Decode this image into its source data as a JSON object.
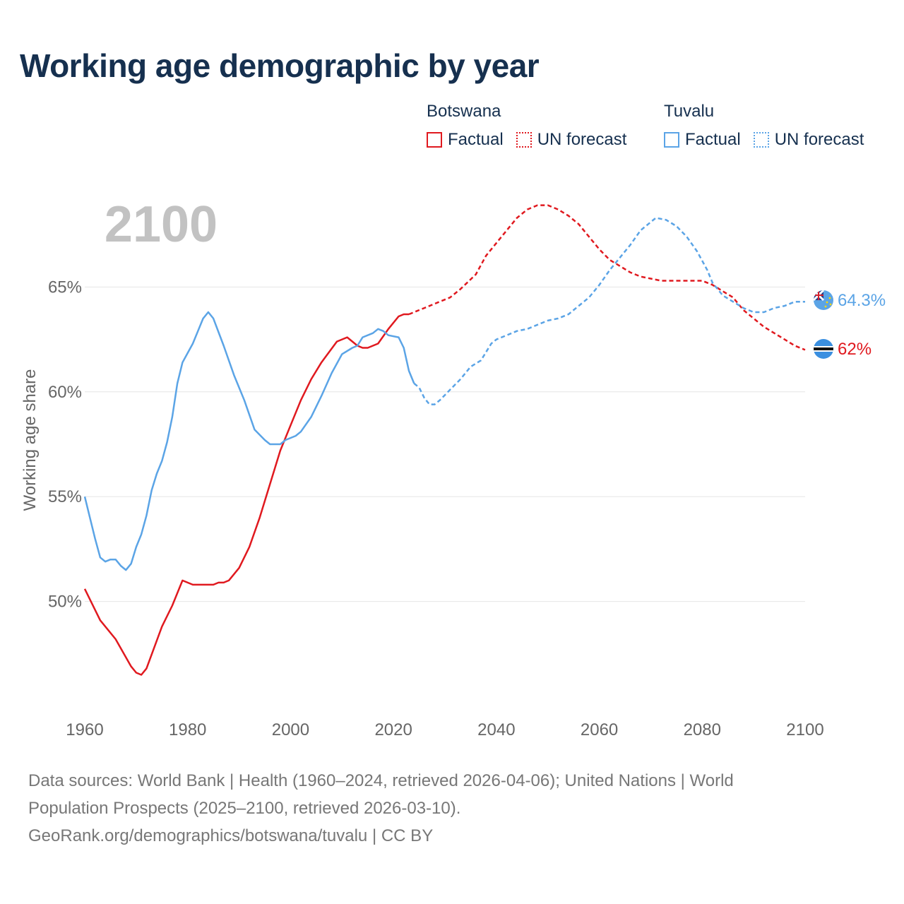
{
  "chart_data": {
    "type": "line",
    "title": "Working age demographic by year",
    "ylabel": "Working age share",
    "xlabel": "",
    "year_label": "2100",
    "xlim": [
      1960,
      2100
    ],
    "ylim": [
      45,
      70
    ],
    "x_ticks": [
      "1960",
      "1980",
      "2000",
      "2020",
      "2040",
      "2060",
      "2080",
      "2100"
    ],
    "x_tick_values": [
      1960,
      1980,
      2000,
      2020,
      2040,
      2060,
      2080,
      2100
    ],
    "y_ticks": [
      "50%",
      "55%",
      "60%",
      "65%"
    ],
    "y_tick_values": [
      50,
      55,
      60,
      65
    ],
    "factual_end_year": 2024,
    "series": [
      {
        "name": "Botswana",
        "color": "#e0191f",
        "end_label": "62%",
        "flag": "botswana-flag",
        "points": [
          [
            1960,
            50.6
          ],
          [
            1963,
            49.1
          ],
          [
            1966,
            48.2
          ],
          [
            1969,
            46.9
          ],
          [
            1970,
            46.6
          ],
          [
            1971,
            46.5
          ],
          [
            1972,
            46.8
          ],
          [
            1975,
            48.8
          ],
          [
            1977,
            49.8
          ],
          [
            1979,
            51.0
          ],
          [
            1981,
            50.8
          ],
          [
            1983,
            50.8
          ],
          [
            1985,
            50.8
          ],
          [
            1986,
            50.9
          ],
          [
            1987,
            50.9
          ],
          [
            1988,
            51.0
          ],
          [
            1990,
            51.6
          ],
          [
            1992,
            52.6
          ],
          [
            1994,
            54.0
          ],
          [
            1996,
            55.6
          ],
          [
            1998,
            57.2
          ],
          [
            2000,
            58.4
          ],
          [
            2002,
            59.6
          ],
          [
            2004,
            60.6
          ],
          [
            2006,
            61.4
          ],
          [
            2009,
            62.4
          ],
          [
            2011,
            62.6
          ],
          [
            2013,
            62.2
          ],
          [
            2014,
            62.1
          ],
          [
            2015,
            62.1
          ],
          [
            2017,
            62.3
          ],
          [
            2019,
            63.0
          ],
          [
            2021,
            63.6
          ],
          [
            2022,
            63.7
          ],
          [
            2023,
            63.7
          ],
          [
            2025,
            63.9
          ],
          [
            2026,
            64.0
          ],
          [
            2028,
            64.2
          ],
          [
            2031,
            64.5
          ],
          [
            2033,
            64.9
          ],
          [
            2036,
            65.6
          ],
          [
            2038,
            66.5
          ],
          [
            2041,
            67.4
          ],
          [
            2044,
            68.3
          ],
          [
            2046,
            68.7
          ],
          [
            2048,
            68.9
          ],
          [
            2050,
            68.9
          ],
          [
            2052,
            68.7
          ],
          [
            2054,
            68.4
          ],
          [
            2056,
            68.0
          ],
          [
            2058,
            67.4
          ],
          [
            2060,
            66.8
          ],
          [
            2062,
            66.3
          ],
          [
            2064,
            66.0
          ],
          [
            2066,
            65.7
          ],
          [
            2068,
            65.5
          ],
          [
            2070,
            65.4
          ],
          [
            2072,
            65.3
          ],
          [
            2074,
            65.3
          ],
          [
            2076,
            65.3
          ],
          [
            2078,
            65.3
          ],
          [
            2080,
            65.3
          ],
          [
            2082,
            65.1
          ],
          [
            2084,
            64.8
          ],
          [
            2086,
            64.5
          ],
          [
            2088,
            63.9
          ],
          [
            2090,
            63.5
          ],
          [
            2092,
            63.1
          ],
          [
            2094,
            62.8
          ],
          [
            2096,
            62.5
          ],
          [
            2098,
            62.2
          ],
          [
            2100,
            62.0
          ]
        ]
      },
      {
        "name": "Tuvalu",
        "color": "#5ba4e6",
        "end_label": "64.3%",
        "flag": "tuvalu-flag",
        "points": [
          [
            1960,
            55.0
          ],
          [
            1962,
            53.0
          ],
          [
            1963,
            52.1
          ],
          [
            1964,
            51.9
          ],
          [
            1965,
            52.0
          ],
          [
            1966,
            52.0
          ],
          [
            1967,
            51.7
          ],
          [
            1968,
            51.5
          ],
          [
            1969,
            51.8
          ],
          [
            1970,
            52.6
          ],
          [
            1971,
            53.2
          ],
          [
            1972,
            54.1
          ],
          [
            1973,
            55.3
          ],
          [
            1974,
            56.1
          ],
          [
            1975,
            56.7
          ],
          [
            1976,
            57.6
          ],
          [
            1977,
            58.8
          ],
          [
            1978,
            60.4
          ],
          [
            1979,
            61.4
          ],
          [
            1981,
            62.3
          ],
          [
            1982,
            62.9
          ],
          [
            1983,
            63.5
          ],
          [
            1984,
            63.8
          ],
          [
            1985,
            63.5
          ],
          [
            1987,
            62.2
          ],
          [
            1989,
            60.8
          ],
          [
            1991,
            59.6
          ],
          [
            1993,
            58.2
          ],
          [
            1995,
            57.7
          ],
          [
            1996,
            57.5
          ],
          [
            1998,
            57.5
          ],
          [
            1999,
            57.7
          ],
          [
            2001,
            57.9
          ],
          [
            2002,
            58.1
          ],
          [
            2004,
            58.8
          ],
          [
            2006,
            59.8
          ],
          [
            2008,
            60.9
          ],
          [
            2010,
            61.8
          ],
          [
            2012,
            62.1
          ],
          [
            2013,
            62.2
          ],
          [
            2014,
            62.6
          ],
          [
            2016,
            62.8
          ],
          [
            2017,
            63.0
          ],
          [
            2018,
            62.9
          ],
          [
            2019,
            62.7
          ],
          [
            2021,
            62.6
          ],
          [
            2022,
            62.1
          ],
          [
            2023,
            61.0
          ],
          [
            2024,
            60.4
          ],
          [
            2025,
            60.2
          ],
          [
            2026,
            59.7
          ],
          [
            2027,
            59.4
          ],
          [
            2028,
            59.4
          ],
          [
            2029,
            59.6
          ],
          [
            2031,
            60.1
          ],
          [
            2033,
            60.6
          ],
          [
            2035,
            61.2
          ],
          [
            2037,
            61.5
          ],
          [
            2039,
            62.3
          ],
          [
            2040,
            62.5
          ],
          [
            2042,
            62.7
          ],
          [
            2044,
            62.9
          ],
          [
            2046,
            63.0
          ],
          [
            2048,
            63.2
          ],
          [
            2050,
            63.4
          ],
          [
            2052,
            63.5
          ],
          [
            2054,
            63.7
          ],
          [
            2056,
            64.1
          ],
          [
            2058,
            64.5
          ],
          [
            2060,
            65.1
          ],
          [
            2062,
            65.8
          ],
          [
            2064,
            66.4
          ],
          [
            2066,
            67.0
          ],
          [
            2068,
            67.7
          ],
          [
            2070,
            68.1
          ],
          [
            2071,
            68.3
          ],
          [
            2073,
            68.2
          ],
          [
            2075,
            67.9
          ],
          [
            2077,
            67.4
          ],
          [
            2079,
            66.7
          ],
          [
            2081,
            65.8
          ],
          [
            2082,
            65.2
          ],
          [
            2084,
            64.6
          ],
          [
            2086,
            64.3
          ],
          [
            2088,
            64.0
          ],
          [
            2090,
            63.8
          ],
          [
            2092,
            63.8
          ],
          [
            2094,
            64.0
          ],
          [
            2096,
            64.1
          ],
          [
            2098,
            64.3
          ],
          [
            2100,
            64.3
          ]
        ]
      }
    ],
    "legend": {
      "groups": [
        {
          "name": "Botswana",
          "color": "#e0191f",
          "factual": "Factual",
          "forecast": "UN forecast"
        },
        {
          "name": "Tuvalu",
          "color": "#5ba4e6",
          "factual": "Factual",
          "forecast": "UN forecast"
        }
      ]
    }
  },
  "footer": {
    "line1": "Data sources: World Bank | Health (1960–2024, retrieved 2026-04-06); United Nations | World",
    "line2": "Population Prospects (2025–2100, retrieved 2026-03-10).",
    "line3": "GeoRank.org/demographics/botswana/tuvalu | CC BY"
  }
}
